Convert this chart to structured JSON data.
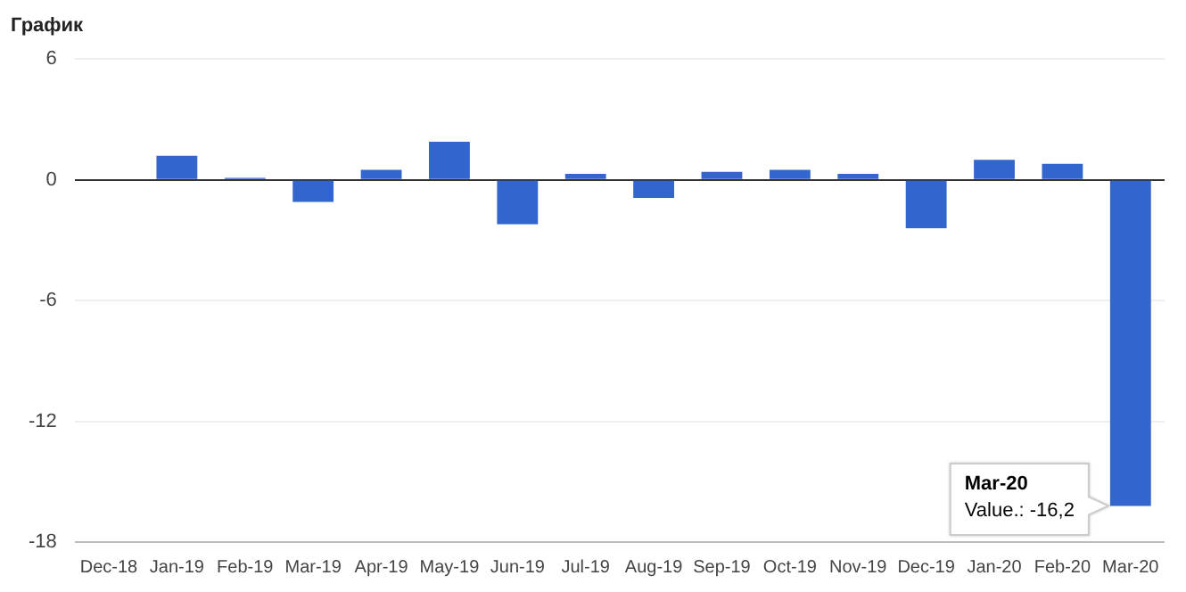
{
  "chart_data": {
    "type": "bar",
    "title": "График",
    "categories": [
      "Dec-18",
      "Jan-19",
      "Feb-19",
      "Mar-19",
      "Apr-19",
      "May-19",
      "Jun-19",
      "Jul-19",
      "Aug-19",
      "Sep-19",
      "Oct-19",
      "Nov-19",
      "Dec-19",
      "Jan-20",
      "Feb-20",
      "Mar-20"
    ],
    "values": [
      0,
      1.2,
      0.1,
      -1.1,
      0.5,
      1.9,
      -2.2,
      0.3,
      -0.9,
      0.4,
      0.5,
      0.3,
      -2.4,
      1.0,
      0.8,
      -16.2
    ],
    "color": "#3366cc",
    "ylim": [
      -18,
      6
    ],
    "yticks": [
      -18,
      -12,
      -6,
      0,
      6
    ],
    "grid": "y",
    "legend": false,
    "annotations": [
      {
        "text": "Mar-20\nValue.: -16,2",
        "x": "Mar-20",
        "y": -16.2
      }
    ]
  }
}
